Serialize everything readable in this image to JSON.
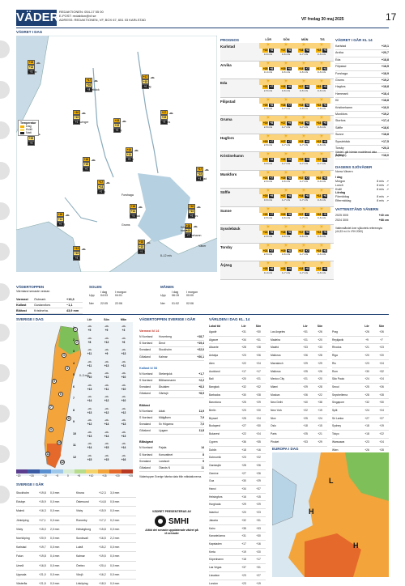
{
  "header": {
    "title": "VÄDER",
    "line1": "REDAKTIONEN: 054-17 55 00",
    "line2": "E-POST: redaktion@vf.se",
    "line3": "ADRESS: REDAKTIONEN, VF, BOX 67, 651 03 KARLSTAD",
    "date": "VF fredag 30 maj 2025",
    "page_number": "17"
  },
  "map_title": "VÄDRET I DAG",
  "temp_legend": {
    "title": "Temperatur",
    "items": [
      "Dag",
      "Kväll",
      "Natt"
    ]
  },
  "map_cities": [
    {
      "name": "Hamrar",
      "d": "+15",
      "k": "+13",
      "n": "+5"
    },
    {
      "name": "Sysslebäck",
      "d": "+17",
      "k": "+16",
      "n": "+8"
    },
    {
      "name": "Malung",
      "d": "+17",
      "k": "+15",
      "n": "+6"
    },
    {
      "name": "Kongsvinger",
      "d": "+16",
      "k": "+15",
      "n": "+6"
    },
    {
      "name": "Torsby",
      "d": "+15",
      "k": "+15",
      "n": "+8"
    },
    {
      "name": "Hagfors",
      "d": "+17",
      "k": "+15",
      "n": "+5"
    },
    {
      "name": "Oslo",
      "d": "+16",
      "k": "+15",
      "n": "+8"
    },
    {
      "name": "Eda",
      "d": "+16",
      "k": "+15",
      "n": "+6"
    },
    {
      "name": "Sunne",
      "d": "+14",
      "k": "+14",
      "n": "+8"
    },
    {
      "name": "Filipstad",
      "d": "+17",
      "k": "+15",
      "n": "+4"
    },
    {
      "name": "Arvika",
      "d": "+17",
      "k": "+14",
      "n": "+7"
    },
    {
      "name": "Karlstad",
      "d": "+16",
      "k": "+14",
      "n": "+5"
    },
    {
      "name": "Storfors",
      "d": "+16",
      "k": "+15",
      "n": "+5"
    },
    {
      "name": "Årjäng",
      "d": "+16",
      "k": "+14",
      "n": "+6"
    },
    {
      "name": "Säffle",
      "d": "+15",
      "k": "+15",
      "n": "+5"
    },
    {
      "name": "Kristinehamn",
      "d": "+16",
      "k": "+15",
      "n": "+7"
    },
    {
      "name": "Åmål",
      "d": "+13",
      "k": "+15",
      "n": "+6"
    }
  ],
  "map_places": [
    "Forshaga",
    "Grums",
    "Kristine-hamn",
    "Väner"
  ],
  "map_wind": "8–12 m/s",
  "prognos": {
    "title": "PROGNOS",
    "days": [
      "LÖR",
      "SÖN",
      "MÅN",
      "TIS"
    ],
    "rows": [
      {
        "city": "Karlstad",
        "temps": [
          "+19",
          "+17",
          "+16",
          "+15"
        ],
        "night": [
          "+8",
          "+8",
          "+8",
          "+5"
        ],
        "wind": [
          "3–6 m/s",
          "3–6 m/s",
          "4–7 m/s",
          "3–6 m/s"
        ]
      },
      {
        "city": "Arvika",
        "temps": [
          "+20",
          "+19",
          "+16",
          "+17"
        ],
        "night": [
          "+8",
          "+9",
          "+7",
          "+4"
        ],
        "wind": [
          "3–4 m/s",
          "3–6 m/s",
          "3–6 m/s",
          "3–6 m/s"
        ]
      },
      {
        "city": "Eda",
        "temps": [
          "+21",
          "+18",
          "+17",
          "+15"
        ],
        "night": [
          "+7",
          "+8",
          "+6",
          "+5"
        ],
        "wind": [
          "2–5 m/s",
          "3–6 m/s",
          "3–6 m/s",
          "3–6 m/s"
        ]
      },
      {
        "city": "Filipstad",
        "temps": [
          "+20",
          "+18",
          "+15",
          "+15"
        ],
        "night": [
          "+8",
          "+7",
          "+6",
          "+5"
        ],
        "wind": [
          "2–5 m/s",
          "4–7 m/s",
          "3–6 m/s",
          "3–6 m/s"
        ]
      },
      {
        "city": "Gruma",
        "temps": [
          "+19",
          "+17",
          "+16",
          "+16"
        ],
        "night": [
          "+8",
          "+9",
          "+8",
          "+5"
        ],
        "wind": [
          "2–5 m/s",
          "4–7 m/s",
          "4–7 m/s",
          "3–6 m/s"
        ]
      },
      {
        "city": "Hagfors",
        "temps": [
          "+19",
          "+17",
          "+15",
          "+15"
        ],
        "night": [
          "+7",
          "+7",
          "+6",
          "+6"
        ],
        "wind": [
          "2–5 m/s",
          "4–7 m/s",
          "4–7 m/s",
          "3–6 m/s"
        ]
      },
      {
        "city": "Kristinehamn",
        "temps": [
          "+19",
          "+16",
          "+15",
          "+15"
        ],
        "night": [
          "+8",
          "+9",
          "+8",
          "+6"
        ],
        "wind": [
          "3–6 m/s",
          "4–7 m/s",
          "4–7 m/s",
          "4–7 m/s"
        ]
      },
      {
        "city": "Munkfors",
        "temps": [
          "+21",
          "+19",
          "+17",
          "+16"
        ],
        "night": [
          "+7",
          "+8",
          "+7",
          "+5"
        ],
        "wind": [
          "2–5 m/s",
          "3–6 m/s",
          "4–7 m/s",
          "3–6 m/s"
        ]
      },
      {
        "city": "Säffle",
        "temps": [
          "+19",
          "+17",
          "+16",
          "+14"
        ],
        "night": [
          "+9",
          "+8",
          "+8",
          "+6"
        ],
        "wind": [
          "3–6 m/s",
          "4–7 m/s",
          "4–7 m/s",
          "3–6 m/s"
        ]
      },
      {
        "city": "Sunne",
        "temps": [
          "+21",
          "+19",
          "+17",
          "+16"
        ],
        "night": [
          "+7",
          "+8",
          "+7",
          "+5"
        ],
        "wind": [
          "2–5 m/s",
          "3–6 m/s",
          "4–7 m/s",
          "3–6 m/s"
        ]
      },
      {
        "city": "Sysslebäck",
        "temps": [
          "+21",
          "+18",
          "+17",
          "+15"
        ],
        "night": [
          "+6",
          "+8",
          "+6",
          "+5"
        ],
        "wind": [
          "2–5 m/s",
          "3–6 m/s",
          "3–6 m/s",
          "3–6 m/s"
        ]
      },
      {
        "city": "Torsby",
        "temps": [
          "+21",
          "+19",
          "+17",
          "+16"
        ],
        "night": [
          "+7",
          "+8",
          "+7",
          "+5"
        ],
        "wind": [
          "2–5 m/s",
          "3–6 m/s",
          "4–7 m/s",
          "3–6 m/s"
        ]
      },
      {
        "city": "Årjäng",
        "temps": [
          "+20",
          "+18",
          "+16",
          "+15"
        ],
        "night": [
          "+8",
          "+9",
          "+8",
          "+6"
        ],
        "wind": [
          "3–4 m/s",
          "4–7 m/s",
          "4–7 m/s",
          "3–6 m/s"
        ]
      }
    ]
  },
  "varmland14": {
    "title": "VÄDRET I GÅR KL 14",
    "rows": [
      [
        "Karlstad",
        "+19,1"
      ],
      [
        "Arvika",
        "+20,7"
      ],
      [
        "Eda",
        "+18,8"
      ],
      [
        "Filipstad",
        "+18,5"
      ],
      [
        "Forshaga",
        "+18,9"
      ],
      [
        "Grums",
        "+19,2"
      ],
      [
        "Hagfors",
        "+18,8"
      ],
      [
        "Hammarö",
        "+18,4"
      ],
      [
        "Kil",
        "+18,8"
      ],
      [
        "Kristinehamn",
        "+16,0"
      ],
      [
        "Munkfors",
        "+19,2"
      ],
      [
        "Storfors",
        "+17,4"
      ],
      [
        "Säffle",
        "+18,6"
      ],
      [
        "Sunne",
        "+18,8"
      ],
      [
        "Sysslebäck",
        "+17,5"
      ],
      [
        "Torsby",
        "+20,3"
      ],
      [
        "Årjäng",
        "+18,0"
      ]
    ],
    "note": "Värdet i går hämtar modellerad data (MESAN)."
  },
  "vind": {
    "title": "DAGENS SJÖVÄDER",
    "sub": "Norra Vänern",
    "groups": [
      {
        "label": "I dag",
        "rows": [
          [
            "Morgon",
            "8 m/s"
          ],
          [
            "Lunch",
            "8 m/s"
          ],
          [
            "Kväll",
            "8 m/s"
          ]
        ]
      },
      {
        "label": "Lördag",
        "rows": [
          [
            "Förmiddag",
            "8 m/s"
          ],
          [
            "Eftermiddag",
            "8 m/s"
          ]
        ]
      }
    ]
  },
  "vanern": {
    "title": "VATTENSTÅND VÄNERN",
    "rows": [
      [
        "2025 30/5",
        "+40 cm"
      ],
      [
        "2024 30/5",
        "+88 cm"
      ]
    ],
    "note": "Vattenståndet över sjökortets referensyta (44,33 m ö h i RH 2000)"
  },
  "toppen": {
    "title": "VÄDERTOPPEN",
    "sub": "Värmland senaste veckan",
    "rows": [
      [
        "Varmast",
        "Östmark",
        "+19,3"
      ],
      [
        "Kallast",
        "Gustavsfors",
        "−1,1"
      ],
      [
        "Blötast",
        "Kristineha.",
        "43,9 mm"
      ]
    ]
  },
  "solen": {
    "title": "SOLEN",
    "cols": [
      "I dag",
      "I morgon"
    ],
    "upp": [
      "04:03",
      "04:01"
    ],
    "ner": [
      "22:05",
      "22:06"
    ]
  },
  "manen": {
    "title": "MÅNEN",
    "cols": [
      "I dag",
      "I morgon"
    ],
    "upp": [
      "06:15",
      "00:00"
    ],
    "ner": [
      "01:02",
      "02:06"
    ]
  },
  "sverige": {
    "title": "SVERIGE I DAG",
    "cols": [
      "Lör",
      "Sön",
      "Mån"
    ],
    "rows": [
      [
        "1",
        "+5",
        "+9",
        "+3"
      ],
      [
        "2",
        "+8",
        "+12",
        "+6"
      ],
      [
        "3",
        "+11",
        "+9",
        "+13"
      ],
      [
        "4",
        "+11",
        "+13",
        "+11"
      ],
      [
        "5",
        "+10",
        "+12",
        "+10"
      ],
      [
        "6",
        "+13",
        "+11",
        "+10"
      ],
      [
        "7",
        "+14",
        "+12",
        "+10"
      ],
      [
        "8",
        "+13",
        "+12",
        "+12"
      ],
      [
        "9",
        "+12",
        "+14",
        "+13"
      ],
      [
        "10",
        "+13",
        "+14",
        "+13"
      ],
      [
        "11",
        "+14",
        "+15",
        "+14"
      ],
      [
        "12",
        "+15",
        "+15",
        "+16"
      ]
    ],
    "scale": [
      "−20",
      "−15",
      "−10",
      "−5",
      "0",
      "+5",
      "+10",
      "+15",
      "+20",
      "+25"
    ],
    "wind": "0–3 m/s"
  },
  "sverige_igar": {
    "title": "SVERIGE I GÅR",
    "rows": [
      [
        "Stockholm",
        "+19,8",
        "0,0 mm",
        "Kiruna",
        "+12,3",
        "3,0 mm"
      ],
      [
        "Edsbyn",
        "+15,9",
        "0,0 mm",
        "Östersund",
        "+14,8",
        "0,5 mm"
      ],
      [
        "Malmö",
        "+16,3",
        "0,0 mm",
        "Visby",
        "+15,9",
        "0,0 mm"
      ],
      [
        "Jönköping",
        "+17,1",
        "0,0 mm",
        "Ronneby",
        "+17,2",
        "0,2 mm"
      ],
      [
        "Visby",
        "+15,0",
        "2,0 mm",
        "Helsingborg",
        "+15,8",
        "0,0 mm"
      ],
      [
        "Norrköping",
        "+20,9",
        "0,0 mm",
        "Sundsvall",
        "+16,5",
        "2,2 mm"
      ],
      [
        "Karlstad",
        "+19,7",
        "0,0 mm",
        "Luleå",
        "+15,2",
        "0,0 mm"
      ],
      [
        "Falun",
        "+19,8",
        "0,4 mm",
        "Kalmar",
        "+19,5",
        "0,0 mm"
      ],
      [
        "Umeå",
        "+16,5",
        "0,0 mm",
        "Örebro",
        "+20,4",
        "0,0 mm"
      ],
      [
        "Uppsala",
        "+21,0",
        "0,0 mm",
        "Växjö",
        "+16,2",
        "0,0 mm"
      ],
      [
        "Västerås",
        "+21,5",
        "0,0 mm",
        "Linköping",
        "+18,0",
        "0,0 mm"
      ]
    ]
  },
  "toppen_sv": {
    "title": "VÄDERTOPPEN SVERIGE I GÅR",
    "varmast": {
      "title": "Varmast kl 14",
      "rows": [
        [
          "N Norrland",
          "Hoverberg",
          "+18,7"
        ],
        [
          "S Norrland",
          "Åmot",
          "+19,4"
        ],
        [
          "Svealand",
          "Stockholm",
          "+22,0"
        ],
        [
          "Götaland",
          "Kalmar",
          "+20,1"
        ]
      ]
    },
    "kallast": {
      "title": "Kallast kl 08",
      "rows": [
        [
          "N Norrland",
          "Stekenjokk",
          "+1,7"
        ],
        [
          "S Norrland",
          "Blåhammaren",
          "+2,2"
        ],
        [
          "Svealand",
          "Ålsdalen",
          "+8,3"
        ],
        [
          "Götaland",
          "Gäntsjö",
          "+8,9"
        ]
      ]
    },
    "blotast": {
      "title": "Blötast",
      "rows": [
        [
          "N Norrland",
          "Adak",
          "11,9"
        ],
        [
          "S Norrland",
          "Mälgåsen",
          "7,9"
        ],
        [
          "Svealand",
          "Sv Högarna",
          "7,0"
        ],
        [
          "Götaland",
          "Ljugarn",
          "11,8"
        ]
      ]
    },
    "blasigast": {
      "title": "Blåsigast",
      "rows": [
        [
          "N Norrland",
          "Pajala",
          "14"
        ],
        [
          "S Norrland",
          "Korsvattnet",
          "8"
        ],
        [
          "Svealand",
          "Landsort",
          "9"
        ],
        [
          "Götaland",
          "Ölands N",
          "11"
        ]
      ]
    },
    "note": "Vädertoppen Sverige hämtar data från mätstationerna.",
    "smhi_title": "VÄDRET PRESENTERAS AV",
    "smhi_name": "SMHI",
    "smhi_text": "Alltid det senaste uppdaterade vädret på vf.se/vader"
  },
  "varlden": {
    "title": "VÄRLDEN I DAG KL. 14",
    "cols": [
      "Lokal tid",
      "Lör",
      "Sön"
    ],
    "col1": [
      [
        "Agadir",
        "+31",
        "+30"
      ],
      [
        "Algarve",
        "+34",
        "+31"
      ],
      [
        "Alicante",
        "+28",
        "+28"
      ],
      [
        "Antalya",
        "+23",
        "+26"
      ],
      [
        "Aten",
        "+22",
        "+24"
      ],
      [
        "Auckland",
        "+17",
        "+17"
      ],
      [
        "Bali",
        "+20",
        "+21"
      ],
      [
        "Bangkok",
        "+32",
        "+32"
      ],
      [
        "Barbados",
        "+30",
        "+28"
      ],
      [
        "Barcelona",
        "+25",
        "+29"
      ],
      [
        "Berlin",
        "+23",
        "+20"
      ],
      [
        "Bryssel",
        "+25",
        "+24"
      ],
      [
        "Budapest",
        "+27",
        "+30"
      ],
      [
        "Bukarest",
        "+22",
        "+24"
      ],
      [
        "Cypern",
        "+36",
        "+35"
      ],
      [
        "Dublin",
        "+18",
        "+16"
      ],
      [
        "Dubrovnik",
        "+23",
        "+22"
      ],
      [
        "Gardasjön",
        "+28",
        "+26"
      ],
      [
        "Genève",
        "+27",
        "+26"
      ],
      [
        "Goa",
        "+30",
        "+29"
      ],
      [
        "Hanoi",
        "+34",
        "+37"
      ],
      [
        "Helsingfors",
        "+16",
        "+15"
      ],
      [
        "Hurghada",
        "+29",
        "+29"
      ],
      [
        "Istanbul",
        "+20",
        "+23"
      ],
      [
        "Jakarta",
        "+32",
        "+31"
      ],
      [
        "Kairo",
        "+35",
        "+33"
      ],
      [
        "Kanarieöarna",
        "+31",
        "+30"
      ],
      [
        "Kapstaden",
        "+17",
        "+16"
      ],
      [
        "Kreta",
        "+19",
        "+20"
      ],
      [
        "Köpenhamn",
        "+18",
        "+17"
      ],
      [
        "Las Vegas",
        "+37",
        "+31"
      ],
      [
        "Lissabon",
        "+23",
        "+27"
      ],
      [
        "London",
        "+23",
        "+19"
      ]
    ],
    "col2": [
      [
        "Los Angeles",
        "+31",
        "+26"
      ],
      [
        "Madeira",
        "+21",
        "+20"
      ],
      [
        "Madrid",
        "+33",
        "+33"
      ],
      [
        "Mallorca",
        "+26",
        "+28"
      ],
      [
        "Marrakech",
        "+29",
        "+29"
      ],
      [
        "Mallorca",
        "+25",
        "+26"
      ],
      [
        "Mexico City",
        "+21",
        "+20"
      ],
      [
        "Miami",
        "+29",
        "+28"
      ],
      [
        "Moskva",
        "+26",
        "+22"
      ],
      [
        "New Delhi",
        "+40",
        "+38"
      ],
      [
        "New York",
        "+22",
        "+19"
      ],
      [
        "Nice",
        "+25",
        "+24"
      ],
      [
        "Oslo",
        "+18",
        "+15"
      ],
      [
        "Paris",
        "+25",
        "+21"
      ],
      [
        "Phuket",
        "+33",
        "+29"
      ]
    ],
    "col3": [
      [
        "Prag",
        "+26",
        "+26"
      ],
      [
        "Reykjavik",
        "+9",
        "+7"
      ],
      [
        "Rhodos",
        "+21",
        "+23"
      ],
      [
        "Riga",
        "+20",
        "+20"
      ],
      [
        "Rio",
        "+23",
        "+24"
      ],
      [
        "Rom",
        "+30",
        "+32"
      ],
      [
        "São Paulo",
        "+24",
        "+24"
      ],
      [
        "Seoul",
        "+25",
        "+26"
      ],
      [
        "Seychellerna",
        "+28",
        "+28"
      ],
      [
        "Singapore",
        "+32",
        "+30"
      ],
      [
        "Split",
        "+24",
        "+24"
      ],
      [
        "Sri Lanka",
        "+27",
        "+27"
      ],
      [
        "Sydney",
        "+18",
        "+19"
      ],
      [
        "Tokyo",
        "+18",
        "+22"
      ],
      [
        "Warszawa",
        "+23",
        "+24"
      ],
      [
        "Wien",
        "+26",
        "+28"
      ]
    ]
  },
  "europa": {
    "title": "EUROPA I DAG",
    "labels": [
      "L",
      "H",
      "H"
    ]
  }
}
